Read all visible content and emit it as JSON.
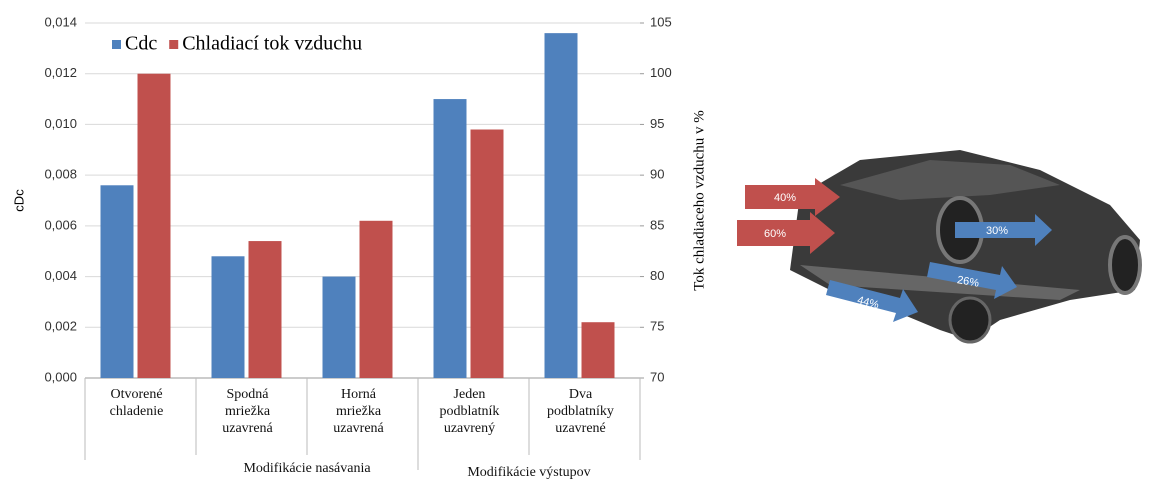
{
  "chart_data": {
    "type": "bar",
    "categories": [
      "Otvorené chladenie",
      "Spodná mriežka uzavrená",
      "Horná mriežka uzavrená",
      "Jeden podblatník uzavrený",
      "Dva podblatníky uzavrené"
    ],
    "category_groups": [
      "Modifikácie nasávania",
      "Modifikácie výstupov"
    ],
    "series": [
      {
        "name": "Cdc",
        "color": "#4f81bd",
        "values": [
          0.0076,
          0.0048,
          0.004,
          0.011,
          0.0136
        ]
      },
      {
        "name": "Chladiací tok vzduchu",
        "color": "#c0504d",
        "axis": "y2",
        "values": [
          100,
          83.5,
          85.5,
          94.5,
          75.5
        ]
      }
    ],
    "y_label": "cDc",
    "y2_label": "Tok chladiaceho vzduchu v %",
    "ylim": [
      0,
      0.014
    ],
    "yticks": [
      {
        "value": 0,
        "label": "0,000"
      },
      {
        "value": 0.002,
        "label": "0,002"
      },
      {
        "value": 0.004,
        "label": "0,004"
      },
      {
        "value": 0.006,
        "label": "0,006"
      },
      {
        "value": 0.008,
        "label": "0,008"
      },
      {
        "value": 0.01,
        "label": "0,010"
      },
      {
        "value": 0.012,
        "label": "0,012"
      },
      {
        "value": 0.014,
        "label": "0,014"
      }
    ],
    "y2lim": [
      70,
      105
    ],
    "y2ticks": [
      70,
      75,
      80,
      85,
      90,
      95,
      100,
      105
    ],
    "grid": true,
    "legend": "top-left"
  },
  "illustration": {
    "arrows": [
      "40%",
      "60%",
      "30%",
      "26%",
      "44%"
    ]
  }
}
